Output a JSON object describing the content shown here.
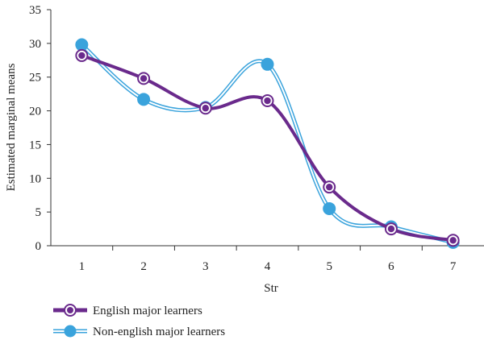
{
  "chart_data": {
    "type": "line",
    "xlabel": "Str",
    "ylabel": "Estimated marginal means",
    "x": [
      1,
      2,
      3,
      4,
      5,
      6,
      7
    ],
    "xlim": [
      0.5,
      7.5
    ],
    "ylim": [
      0,
      35
    ],
    "yticks": [
      0,
      5,
      10,
      15,
      20,
      25,
      30,
      35
    ],
    "grid": false,
    "legend_position": "bottom-left",
    "series": [
      {
        "name": "English major learners",
        "values": [
          28.2,
          24.8,
          20.4,
          21.5,
          8.7,
          2.5,
          0.8
        ],
        "color": "#6a2a8c",
        "marker": "ring-dot"
      },
      {
        "name": "Non-english major learners",
        "values": [
          29.8,
          21.7,
          20.5,
          26.9,
          5.5,
          2.8,
          0.5
        ],
        "color": "#3aa3dc",
        "marker": "filled-circle"
      }
    ]
  }
}
